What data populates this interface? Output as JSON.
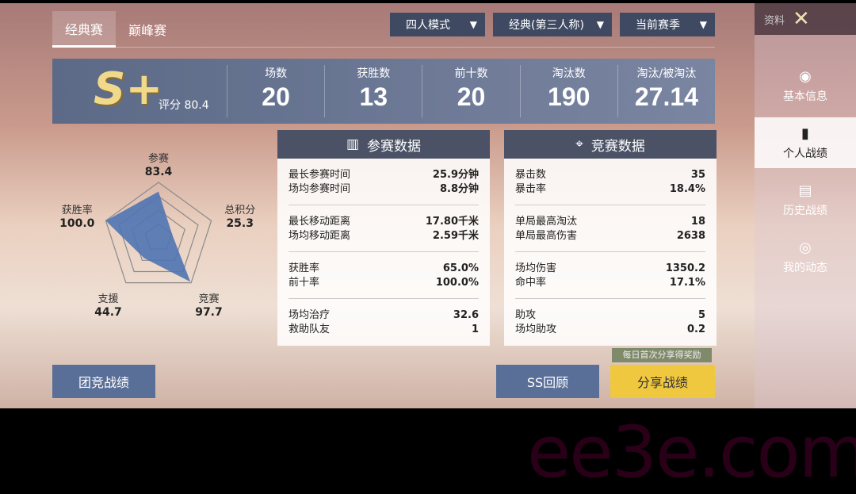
{
  "tabs": [
    {
      "label": "经典赛",
      "active": true
    },
    {
      "label": "巅峰赛",
      "active": false
    }
  ],
  "filters": {
    "mode": "四人模式",
    "view": "经典(第三人称)",
    "season": "当前赛季"
  },
  "rank": {
    "grade": "S+",
    "score_label": "评分 80.4"
  },
  "stats": [
    {
      "label": "场数",
      "value": "20"
    },
    {
      "label": "获胜数",
      "value": "13"
    },
    {
      "label": "前十数",
      "value": "20"
    },
    {
      "label": "淘汰数",
      "value": "190"
    },
    {
      "label": "淘汰/被淘汰",
      "value": "27.14"
    }
  ],
  "radar": {
    "color": "#4f74b3",
    "max": 100,
    "axes": [
      {
        "label": "参赛",
        "value": 83.4,
        "text": "83.4"
      },
      {
        "label": "总积分",
        "value": 25.3,
        "text": "25.3"
      },
      {
        "label": "竞赛",
        "value": 97.7,
        "text": "97.7"
      },
      {
        "label": "支援",
        "value": 44.7,
        "text": "44.7"
      },
      {
        "label": "获胜率",
        "value": 100.0,
        "text": "100.0"
      }
    ]
  },
  "participation": {
    "title": "参赛数据",
    "groups": [
      [
        {
          "k": "最长参赛时间",
          "v": "25.9分钟"
        },
        {
          "k": "场均参赛时间",
          "v": "8.8分钟"
        }
      ],
      [
        {
          "k": "最长移动距离",
          "v": "17.80千米"
        },
        {
          "k": "场均移动距离",
          "v": "2.59千米"
        }
      ],
      [
        {
          "k": "获胜率",
          "v": "65.0%"
        },
        {
          "k": "前十率",
          "v": "100.0%"
        }
      ],
      [
        {
          "k": "场均治疗",
          "v": "32.6"
        },
        {
          "k": "救助队友",
          "v": "1"
        }
      ]
    ]
  },
  "competition": {
    "title": "竞赛数据",
    "groups": [
      [
        {
          "k": "暴击数",
          "v": "35"
        },
        {
          "k": "暴击率",
          "v": "18.4%"
        }
      ],
      [
        {
          "k": "单局最高淘汰",
          "v": "18"
        },
        {
          "k": "单局最高伤害",
          "v": "2638"
        }
      ],
      [
        {
          "k": "场均伤害",
          "v": "1350.2"
        },
        {
          "k": "命中率",
          "v": "17.1%"
        }
      ],
      [
        {
          "k": "助攻",
          "v": "5"
        },
        {
          "k": "场均助攻",
          "v": "0.2"
        }
      ]
    ]
  },
  "buttons": {
    "team": "团竞战绩",
    "review": "SS回顾",
    "share": "分享战绩",
    "share_tip": "每日首次分享得奖励"
  },
  "sidebar": {
    "title": "资料",
    "items": [
      {
        "label": "基本信息"
      },
      {
        "label": "个人战绩",
        "active": true
      },
      {
        "label": "历史战绩"
      },
      {
        "label": "我的动态"
      }
    ]
  },
  "watermark": "ee3e.com"
}
